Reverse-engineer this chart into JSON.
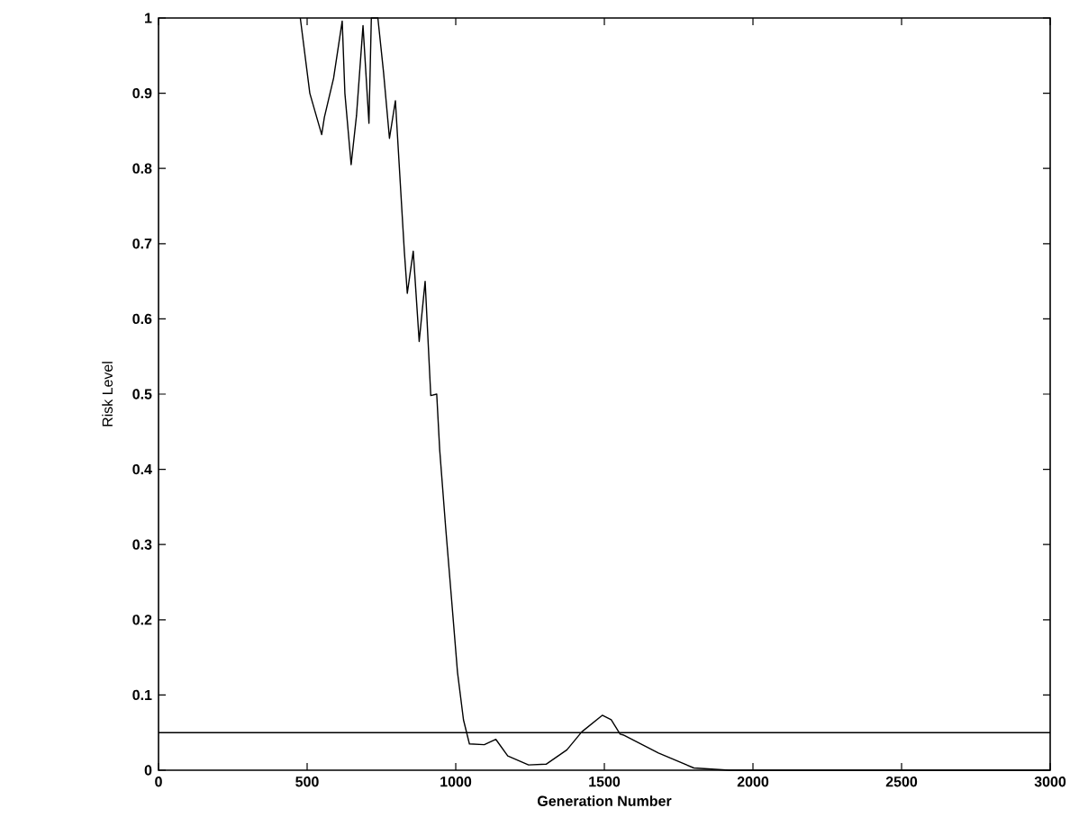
{
  "chart_data": {
    "type": "line",
    "xlabel": "Generation Number",
    "ylabel": "Risk Level",
    "x": [
      477,
      509,
      549,
      558,
      589,
      618,
      627,
      648,
      666,
      688,
      708,
      716,
      738,
      757,
      777,
      797,
      827,
      837,
      857,
      877,
      897,
      916,
      936,
      946,
      966,
      986,
      1006,
      1026,
      1046,
      1096,
      1135,
      1175,
      1245,
      1304,
      1374,
      1424,
      1493,
      1523,
      1553,
      1563,
      1682,
      1801,
      1920,
      2000,
      3000
    ],
    "series": [
      {
        "color": "#000000",
        "values": [
          1,
          0.9,
          0.845,
          0.868,
          0.92,
          0.996,
          0.9,
          0.805,
          0.87,
          0.99,
          0.86,
          1,
          1,
          0.928,
          0.84,
          0.89,
          0.69,
          0.634,
          0.69,
          0.57,
          0.65,
          0.498,
          0.5,
          0.426,
          0.323,
          0.227,
          0.13,
          0.067,
          0.035,
          0.034,
          0.041,
          0.019,
          0.007,
          0.008,
          0.027,
          0.051,
          0.073,
          0.067,
          0.048,
          0.047,
          0.023,
          0.003,
          0,
          0,
          0
        ]
      }
    ],
    "xlim": [
      0,
      3000
    ],
    "xticks": [
      0,
      500,
      1000,
      1500,
      2000,
      2500,
      3000
    ],
    "ylim": [
      0,
      1
    ],
    "yticks": [
      0,
      0.1,
      0.2,
      0.3,
      0.4,
      0.5,
      0.6,
      0.7,
      0.8,
      0.9,
      1
    ],
    "ref_lines": [
      {
        "axis": "y",
        "value": 0.05,
        "color": "#000000"
      }
    ]
  }
}
